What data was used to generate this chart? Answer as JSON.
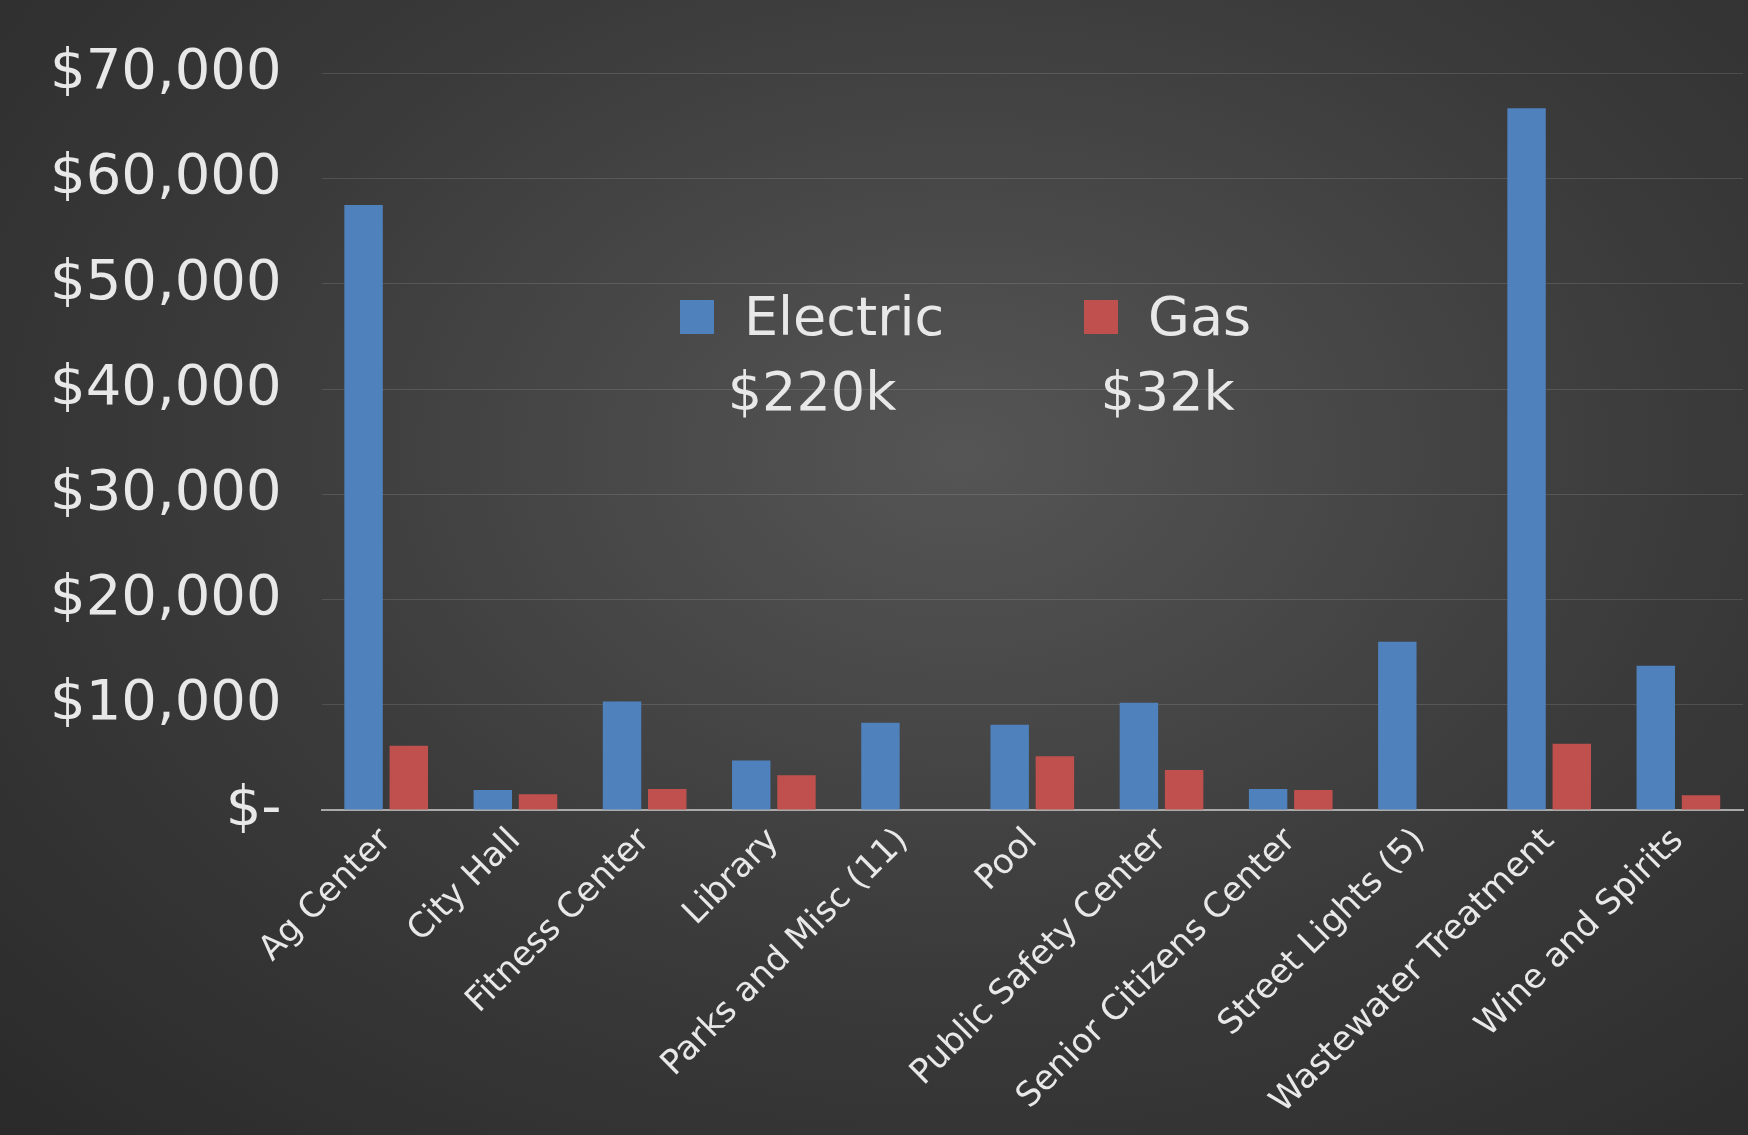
{
  "chart_data": {
    "type": "bar",
    "categories": [
      "Ag Center",
      "City Hall",
      "Fitness Center",
      "Library",
      "Parks and Misc (11)",
      "Pool",
      "Public Safety Center",
      "Senior Citizens Center",
      "Street Lights (5)",
      "Wastewater Treatment",
      "Wine and Spirits"
    ],
    "series": [
      {
        "name": "Electric",
        "color": "#4f81bd",
        "values": [
          57500,
          1900,
          10300,
          4700,
          8300,
          8100,
          10200,
          2000,
          16000,
          66700,
          13700
        ]
      },
      {
        "name": "Gas",
        "color": "#c0504d",
        "values": [
          6100,
          1500,
          2000,
          3300,
          null,
          5100,
          3800,
          1900,
          null,
          6300,
          1400
        ]
      }
    ],
    "ylim": [
      0,
      70000
    ],
    "yticks": [
      {
        "value": 0,
        "label": "$-"
      },
      {
        "value": 10000,
        "label": "$10,000"
      },
      {
        "value": 20000,
        "label": "$20,000"
      },
      {
        "value": 30000,
        "label": "$30,000"
      },
      {
        "value": 40000,
        "label": "$40,000"
      },
      {
        "value": 50000,
        "label": "$50,000"
      },
      {
        "value": 60000,
        "label": "$60,000"
      },
      {
        "value": 70000,
        "label": "$70,000"
      }
    ],
    "grid": "y",
    "legend": "top",
    "annotations": [
      "$220k",
      "$32k"
    ]
  }
}
